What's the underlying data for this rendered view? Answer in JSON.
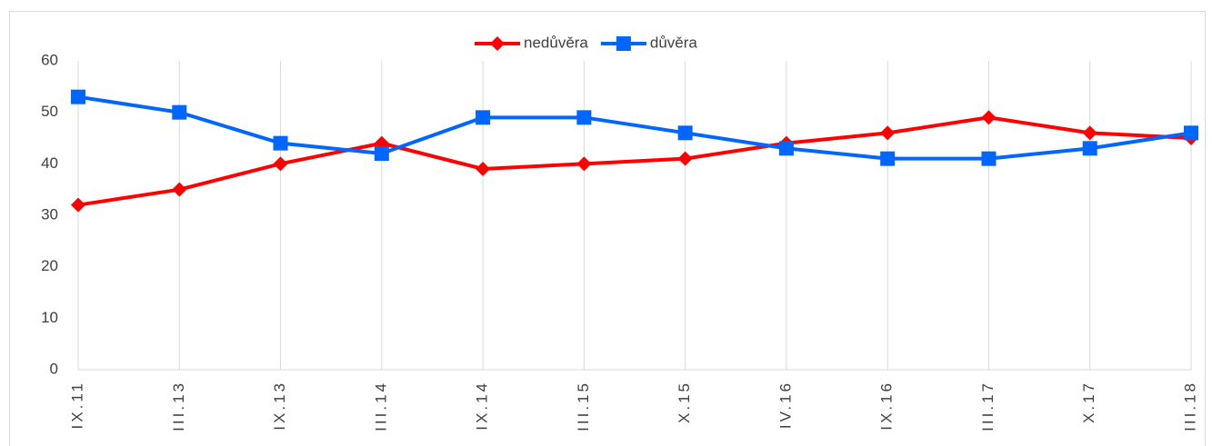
{
  "chart_data": {
    "type": "line",
    "categories": [
      "IX.11",
      "III.13",
      "IX.13",
      "III.14",
      "IX.14",
      "III.15",
      "X.15",
      "IV.16",
      "IX.16",
      "III.17",
      "X.17",
      "III.18"
    ],
    "series": [
      {
        "name": "nedůvěra",
        "color": "#ff0000",
        "marker": "diamond",
        "values": [
          32,
          35,
          40,
          44,
          39,
          40,
          41,
          44,
          46,
          49,
          46,
          45
        ]
      },
      {
        "name": "důvěra",
        "color": "#0066ff",
        "marker": "square",
        "values": [
          53,
          50,
          44,
          42,
          49,
          49,
          46,
          43,
          41,
          41,
          43,
          46
        ]
      }
    ],
    "ylim": [
      0,
      60
    ],
    "yticks": [
      0,
      10,
      20,
      30,
      40,
      50,
      60
    ],
    "grid": "x",
    "legend": "top"
  }
}
